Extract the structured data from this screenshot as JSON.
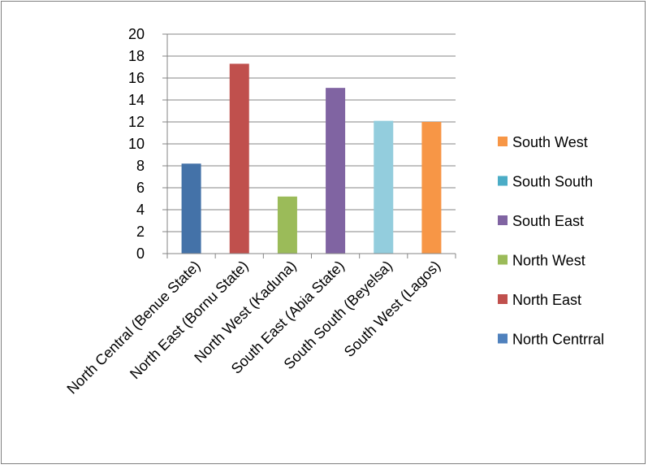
{
  "chart_data": {
    "type": "bar",
    "categories": [
      "North Central (Benue State)",
      "North East (Bornu State)",
      "North West (Kaduna)",
      "South East (Abia State)",
      "South South (Beyelsa)",
      "South West (Lagos)"
    ],
    "values": [
      8.2,
      17.3,
      5.2,
      15.1,
      12.1,
      12.0
    ],
    "bar_colors": [
      "#4472a8",
      "#c0504d",
      "#9bbb59",
      "#8064a2",
      "#93cddd",
      "#f79646"
    ],
    "ylim": [
      0,
      20
    ],
    "yticks": [
      "0",
      "2",
      "4",
      "6",
      "8",
      "10",
      "12",
      "14",
      "16",
      "18",
      "20"
    ],
    "grid": true,
    "title": "",
    "xlabel": "",
    "ylabel": "",
    "legend": {
      "position": "right",
      "entries": [
        {
          "label": "South West",
          "color": "#f79646"
        },
        {
          "label": "South South",
          "color": "#4bacc6"
        },
        {
          "label": "South East",
          "color": "#8064a2"
        },
        {
          "label": "North West",
          "color": "#9bbb59"
        },
        {
          "label": "North East",
          "color": "#c0504d"
        },
        {
          "label": "North Centrral",
          "color": "#4f81bd"
        }
      ]
    }
  }
}
